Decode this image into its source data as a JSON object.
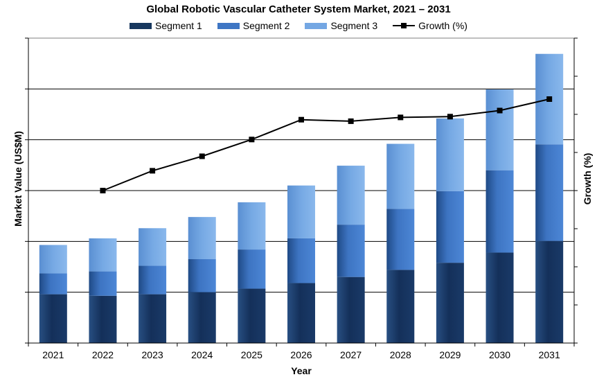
{
  "chart_data": {
    "type": "bar",
    "stacked": true,
    "title": "Global Robotic Vascular Catheter System Market, 2021 – 2031",
    "xlabel": "Year",
    "ylabel": "Market Value (US$M)",
    "y2label": "Growth (%)",
    "categories": [
      "2021",
      "2022",
      "2023",
      "2024",
      "2025",
      "2026",
      "2027",
      "2028",
      "2029",
      "2030",
      "2031"
    ],
    "series": [
      {
        "name": "Segment 1",
        "type": "bar",
        "color": "#17375e",
        "values": [
          0.96,
          0.93,
          0.96,
          1.0,
          1.07,
          1.18,
          1.3,
          1.44,
          1.58,
          1.78,
          2.01
        ]
      },
      {
        "name": "Segment 2",
        "type": "bar",
        "color": "#3f76c4",
        "values": [
          0.41,
          0.48,
          0.56,
          0.65,
          0.77,
          0.88,
          1.03,
          1.2,
          1.41,
          1.62,
          1.9
        ]
      },
      {
        "name": "Segment 3",
        "type": "bar",
        "color": "#74a7e3",
        "values": [
          0.56,
          0.65,
          0.74,
          0.83,
          0.93,
          1.04,
          1.16,
          1.28,
          1.43,
          1.59,
          1.78
        ]
      },
      {
        "name": "Growth (%)",
        "type": "line",
        "color": "#000000",
        "values": [
          null,
          5.0,
          7.6,
          9.5,
          11.7,
          14.3,
          14.1,
          14.6,
          14.7,
          15.5,
          17.0
        ]
      }
    ],
    "ylim": [
      0,
      6
    ],
    "y2lim": [
      -15,
      25
    ],
    "y_ticks_labeled": false,
    "y2_ticks_labeled": false,
    "grid": "horizontal",
    "legend": "top"
  }
}
